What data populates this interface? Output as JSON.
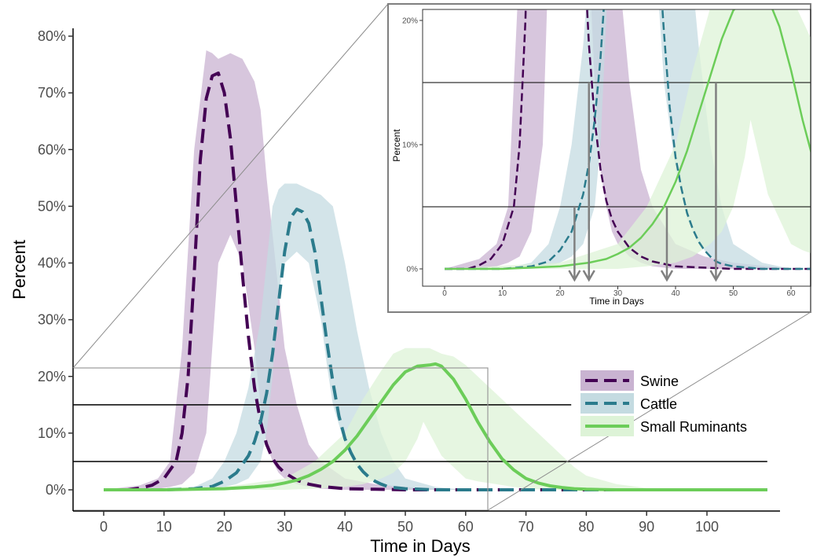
{
  "chart_data": [
    {
      "type": "line",
      "title": "",
      "xlabel": "Time in Days",
      "ylabel": "Percent",
      "xlim": [
        -5,
        110
      ],
      "ylim": [
        -3.5,
        82
      ],
      "xticks": [
        0,
        10,
        20,
        30,
        40,
        50,
        60,
        70,
        80,
        90,
        100
      ],
      "xtick_labels": [
        "0",
        "10",
        "20",
        "30",
        "40",
        "50",
        "60",
        "70",
        "80",
        "90",
        "100"
      ],
      "yticks": [
        0,
        10,
        20,
        30,
        40,
        50,
        60,
        70,
        80
      ],
      "ytick_labels": [
        "0%",
        "10%",
        "20%",
        "30%",
        "40%",
        "50%",
        "60%",
        "70%",
        "80%"
      ],
      "grid": false,
      "legend": "right",
      "hlines": [
        5,
        15
      ],
      "series": [
        {
          "name": "Swine",
          "color": "#440154",
          "band_color": "#c9b3d1",
          "style": "long-dash",
          "x": [
            0,
            4,
            6,
            8,
            10,
            12,
            13,
            14,
            15,
            16,
            17,
            18,
            19,
            20,
            21,
            22,
            23,
            24,
            25,
            26,
            27,
            28,
            29,
            30,
            32,
            34,
            36,
            40,
            45,
            50,
            60,
            70,
            80,
            90,
            110
          ],
          "y": [
            0,
            0,
            0.3,
            0.8,
            2,
            5,
            10,
            20,
            38,
            58,
            69,
            73,
            73.5,
            70,
            62,
            50,
            38,
            27,
            18,
            12,
            8,
            5.5,
            4,
            3,
            1.7,
            1,
            0.6,
            0.2,
            0.1,
            0,
            0,
            0,
            0,
            0,
            0
          ],
          "band_x": [
            0,
            6,
            9,
            11,
            13,
            15,
            17,
            18,
            19,
            21,
            23,
            25,
            26,
            27,
            28,
            29,
            30,
            32,
            34,
            36,
            40,
            45,
            50,
            60
          ],
          "band_lower": [
            0,
            0,
            0.2,
            0.5,
            1,
            3,
            10,
            25,
            40,
            45,
            40,
            25,
            15,
            8,
            5,
            3,
            2,
            1,
            0.5,
            0.2,
            0,
            0,
            0,
            0
          ],
          "band_upper": [
            0,
            0.8,
            2,
            5,
            25,
            60,
            77.5,
            77,
            76,
            77,
            76,
            72,
            67,
            55,
            45,
            35,
            25,
            15,
            8,
            5,
            2,
            1,
            0.5,
            0
          ]
        },
        {
          "name": "Cattle",
          "color": "#2b7b8c",
          "band_color": "#c4dbe1",
          "style": "long-dash",
          "x": [
            0,
            10,
            15,
            18,
            20,
            22,
            24,
            25,
            26,
            27,
            28,
            29,
            30,
            31,
            32,
            33,
            34,
            35,
            36,
            37,
            38,
            39,
            40,
            41,
            42,
            43,
            44,
            45,
            46,
            47,
            48,
            50,
            55,
            60,
            70,
            110
          ],
          "y": [
            0,
            0,
            0.2,
            0.6,
            1.5,
            3,
            6,
            8.5,
            12,
            17,
            24,
            33,
            42,
            48,
            49.5,
            49,
            47,
            42,
            34,
            26,
            19,
            13,
            9,
            6.5,
            4.5,
            3.2,
            2.2,
            1.5,
            1,
            0.6,
            0.4,
            0.2,
            0,
            0,
            0,
            0
          ],
          "band_x": [
            10,
            15,
            18,
            20,
            22,
            24,
            26,
            27,
            28,
            29,
            30,
            32,
            34,
            36,
            37,
            38,
            40,
            42,
            44,
            46,
            48,
            50,
            55,
            60
          ],
          "band_lower": [
            0,
            0,
            0.2,
            0.5,
            1,
            2,
            5,
            10,
            20,
            35,
            40,
            42,
            40,
            30,
            22,
            15,
            8,
            4,
            2,
            1,
            0.5,
            0.2,
            0,
            0
          ],
          "band_upper": [
            0,
            0.5,
            2,
            5,
            10,
            18,
            30,
            40,
            50,
            53,
            54,
            54,
            53,
            52,
            51,
            50,
            40,
            28,
            18,
            10,
            5,
            2,
            0.5,
            0
          ]
        },
        {
          "name": "Small Ruminants",
          "color": "#6ccd59",
          "band_color": "#ddf3d7",
          "style": "solid",
          "x": [
            0,
            10,
            20,
            25,
            28,
            30,
            32,
            34,
            36,
            38,
            40,
            42,
            44,
            46,
            48,
            50,
            52,
            54,
            55,
            56,
            58,
            60,
            62,
            64,
            66,
            68,
            70,
            72,
            74,
            76,
            78,
            80,
            85,
            90,
            110
          ],
          "y": [
            0,
            0,
            0.2,
            0.5,
            0.8,
            1.2,
            1.7,
            2.5,
            3.6,
            5,
            7,
            9.5,
            12.5,
            15.5,
            18.5,
            20.8,
            21.8,
            22,
            22.2,
            21.8,
            19.5,
            16,
            12,
            8.5,
            5.5,
            3.5,
            2,
            1.2,
            0.7,
            0.4,
            0.2,
            0.1,
            0,
            0,
            0
          ],
          "band_x": [
            0,
            20,
            30,
            35,
            40,
            43,
            46,
            48,
            50,
            52,
            53,
            54,
            55,
            56,
            58,
            60,
            62,
            65,
            68,
            70,
            72,
            75,
            78,
            80,
            85,
            90,
            110
          ],
          "band_lower": [
            0,
            0,
            0,
            0.2,
            0.5,
            1,
            2,
            3,
            5,
            9,
            12,
            10,
            8,
            6,
            4,
            2,
            1.5,
            1,
            0.5,
            0.2,
            0.1,
            0,
            0,
            0,
            0,
            0,
            0
          ],
          "band_upper": [
            0,
            0.5,
            2,
            5,
            10,
            16,
            21,
            24,
            25,
            25,
            25,
            25,
            24.5,
            24,
            23.5,
            22,
            20,
            17,
            14,
            12,
            10,
            7,
            4,
            2.5,
            1,
            0.3,
            0
          ]
        }
      ]
    },
    {
      "type": "line",
      "title": "",
      "xlabel": "Time in Days",
      "ylabel": "Percent",
      "xlim": [
        -3,
        63
      ],
      "ylim": [
        -0.5,
        21
      ],
      "xticks": [
        0,
        10,
        20,
        30,
        40,
        50,
        60
      ],
      "xtick_labels": [
        "0",
        "10",
        "20",
        "30",
        "40",
        "50",
        "60"
      ],
      "yticks": [
        0,
        10,
        20
      ],
      "ytick_labels": [
        "0%",
        "10%",
        "20%"
      ],
      "grid": false,
      "hlines": [
        5,
        15
      ],
      "arrows_x": [
        22.5,
        25,
        38.5,
        47
      ],
      "zoom_of_main": true
    }
  ]
}
